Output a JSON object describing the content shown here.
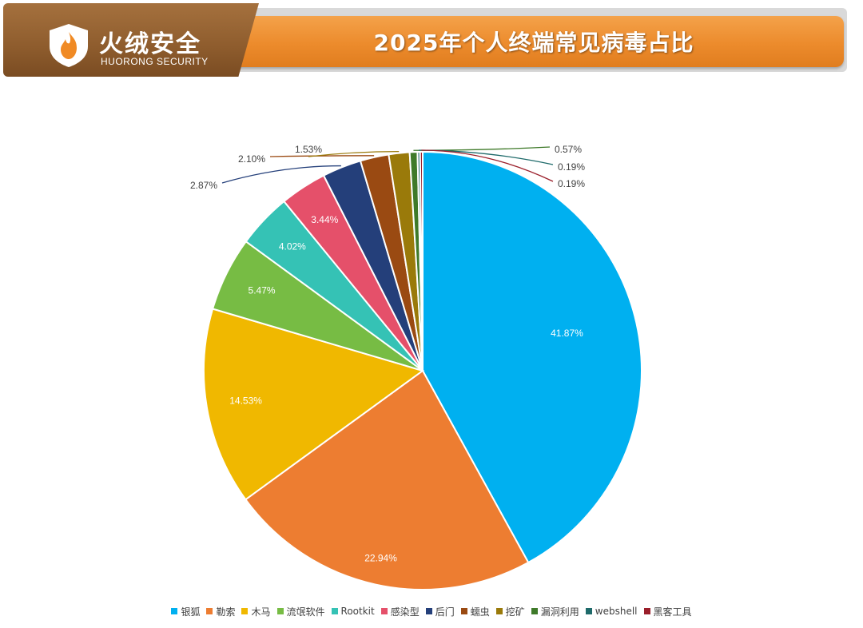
{
  "header": {
    "brand_cn": "火绒安全",
    "brand_en": "HUORONG SECURITY",
    "title": "2025年个人终端常见病毒占比"
  },
  "colors": {
    "brand_brown": "#8e5c2d",
    "title_orange": "#ec8b2c"
  },
  "icons": {
    "logo": "flame-shield-icon"
  },
  "chart_data": {
    "type": "pie",
    "title": "",
    "categories": [
      "银狐",
      "勒索",
      "木马",
      "流氓软件",
      "Rootkit",
      "感染型",
      "后门",
      "蠕虫",
      "挖矿",
      "漏洞利用",
      "webshell",
      "黑客工具"
    ],
    "values": [
      41.87,
      22.94,
      14.53,
      5.47,
      4.02,
      3.44,
      2.87,
      2.1,
      1.53,
      0.57,
      0.19,
      0.19
    ],
    "labels": [
      "41.87%",
      "22.94%",
      "14.53%",
      "5.47%",
      "4.02%",
      "3.44%",
      "2.87%",
      "2.10%",
      "1.53%",
      "0.57%",
      "0.19%",
      "0.19%"
    ],
    "colors": [
      "#00b0f0",
      "#ed7d31",
      "#f0b800",
      "#77bc44",
      "#35c2b5",
      "#e5506a",
      "#243f7a",
      "#9a4a12",
      "#9a7a0a",
      "#3f7a2a",
      "#1e6a6a",
      "#9a1e2a"
    ],
    "label_colors": [
      "#ffffff",
      "#ffffff",
      "#ffffff",
      "#ffffff",
      "#ffffff",
      "#ffffff",
      "#243f7a",
      "#9a4a12",
      "#9a7a0a",
      "#3f7a2a",
      "#1e6a6a",
      "#9a1e2a"
    ],
    "legend_position": "bottom",
    "start_angle_deg": 0,
    "direction": "clockwise"
  }
}
